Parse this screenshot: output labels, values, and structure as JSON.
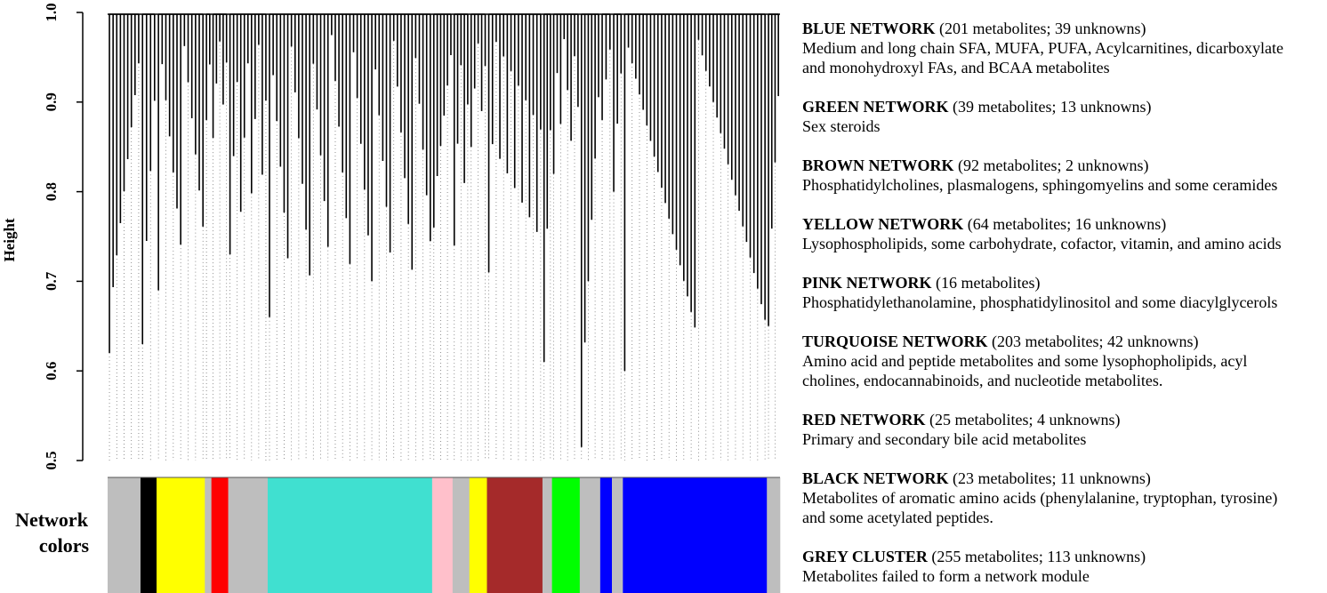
{
  "chart_data": {
    "type": "dendrogram",
    "y_label": "Height",
    "ylim": [
      0.5,
      1.0
    ],
    "yticks": [
      0.5,
      0.6,
      0.7,
      0.8,
      0.9,
      {
        "value": 1.0,
        "label": "1.0"
      }
    ],
    "color_bar_label": [
      "Network",
      "colors"
    ],
    "segments": [
      {
        "color": "#bebebe",
        "leaves": 45,
        "min_height": 0.62
      },
      {
        "color": "#000000",
        "leaves": 22,
        "min_height": 0.63
      },
      {
        "color": "#ffff00",
        "leaves": 66,
        "min_height": 0.69
      },
      {
        "color": "#bebebe",
        "leaves": 9,
        "min_height": 0.88
      },
      {
        "color": "#ff0000",
        "leaves": 23,
        "min_height": 0.86
      },
      {
        "color": "#bebebe",
        "leaves": 54,
        "min_height": 0.73
      },
      {
        "color": "#40e0d0",
        "leaves": 225,
        "min_height": 0.66
      },
      {
        "color": "#ffc0cb",
        "leaves": 28,
        "min_height": 0.76
      },
      {
        "color": "#bebebe",
        "leaves": 23,
        "min_height": 0.74
      },
      {
        "color": "#ffff00",
        "leaves": 24,
        "min_height": 0.85
      },
      {
        "color": "#a52a2a",
        "leaves": 76,
        "min_height": 0.71
      },
      {
        "color": "#bebebe",
        "leaves": 13,
        "min_height": 0.61
      },
      {
        "color": "#00ff00",
        "leaves": 38,
        "min_height": 0.82
      },
      {
        "color": "#bebebe",
        "leaves": 28,
        "min_height": 0.515
      },
      {
        "color": "#0000ff",
        "leaves": 16,
        "min_height": 0.88
      },
      {
        "color": "#bebebe",
        "leaves": 15,
        "min_height": 0.8
      },
      {
        "color": "#0000ff",
        "leaves": 197,
        "min_height": 0.6
      },
      {
        "color": "#bebebe",
        "leaves": 18,
        "min_height": 0.65
      }
    ],
    "legend": [
      {
        "name": "BLUE NETWORK",
        "detail": "(201 metabolites; 39 unknowns)",
        "description": [
          "Medium and long chain SFA, MUFA, PUFA, Acylcarnitines, dicarboxylate",
          "and monohydroxyl FAs, and BCAA metabolites"
        ]
      },
      {
        "name": "GREEN NETWORK",
        "detail": "(39 metabolites; 13 unknowns)",
        "description": [
          "Sex steroids"
        ]
      },
      {
        "name": "BROWN NETWORK",
        "detail": "(92 metabolites; 2 unknowns)",
        "description": [
          "Phosphatidylcholines, plasmalogens, sphingomyelins and some ceramides"
        ]
      },
      {
        "name": "YELLOW NETWORK",
        "detail": "(64 metabolites; 16 unknowns)",
        "description": [
          "Lysophospholipids, some carbohydrate, cofactor, vitamin, and amino acids"
        ]
      },
      {
        "name": "PINK NETWORK",
        "detail": "(16 metabolites)",
        "description": [
          "Phosphatidylethanolamine, phosphatidylinositol and some diacylglycerols"
        ]
      },
      {
        "name": "TURQUOISE NETWORK",
        "detail": "(203 metabolites; 42 unknowns)",
        "description": [
          "Amino acid and peptide metabolites and some lysophopholipids, acyl",
          "cholines, endocannabinoids, and nucleotide metabolites."
        ]
      },
      {
        "name": "RED NETWORK",
        "detail": "(25 metabolites; 4 unknowns)",
        "description": [
          "Primary and secondary bile acid metabolites"
        ]
      },
      {
        "name": "BLACK NETWORK",
        "detail": "(23 metabolites; 11 unknowns)",
        "description": [
          "Metabolites of aromatic amino acids (phenylalanine, tryptophan, tyrosine)",
          "and some acetylated peptides."
        ]
      },
      {
        "name": "GREY CLUSTER",
        "detail": "(255 metabolites; 113 unknowns)",
        "description": [
          "Metabolites failed to form a network module"
        ]
      }
    ]
  }
}
